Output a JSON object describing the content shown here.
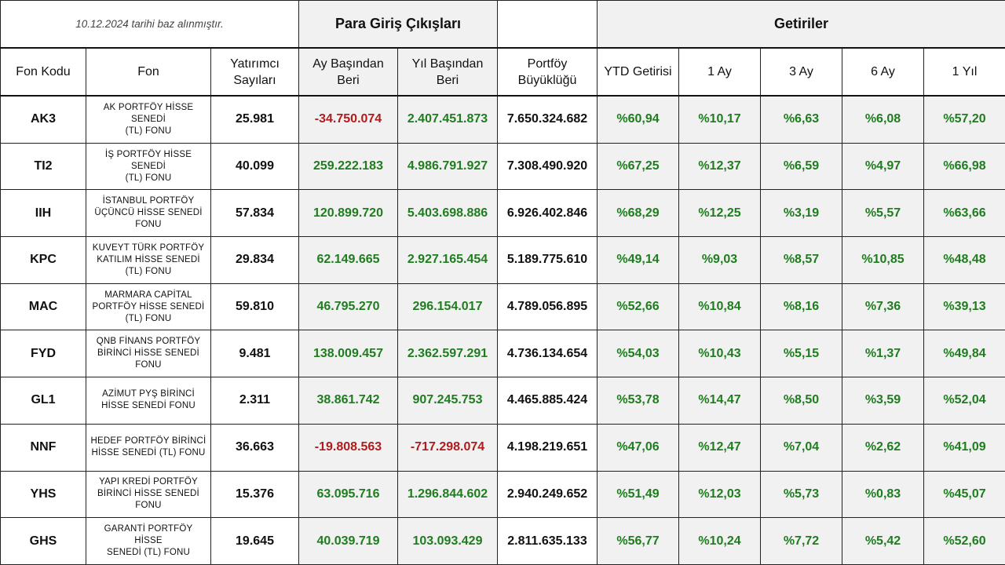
{
  "header": {
    "date_note": "10.12.2024  tarihi baz alınmıştır.",
    "flows_title": "Para Giriş Çıkışları",
    "returns_title": "Getiriler"
  },
  "columns": {
    "code": "Fon Kodu",
    "fund": "Fon",
    "investors_line1": "Yatırımcı",
    "investors_line2": "Sayıları",
    "mtd_line1": "Ay Başından",
    "mtd_line2": "Beri",
    "ytd_flow_line1": "Yıl Başından",
    "ytd_flow_line2": "Beri",
    "size_line1": "Portföy",
    "size_line2": "Büyüklüğü",
    "ytd_return": "YTD Getirisi",
    "r1m": "1 Ay",
    "r3m": "3 Ay",
    "r6m": "6 Ay",
    "r1y": "1 Yıl"
  },
  "colors": {
    "positive": "#1f7d1f",
    "negative": "#b01c1c",
    "shaded": "#f1f1f1"
  },
  "rows": [
    {
      "code": "AK3",
      "fund_l1": "AK PORTFÖY HİSSE SENEDİ",
      "fund_l2": "(TL) FONU",
      "fund_l3": "",
      "investors": "25.981",
      "mtd": "-34.750.074",
      "ytd_flow": "2.407.451.873",
      "size": "7.650.324.682",
      "ytd": "%60,94",
      "r1m": "%10,17",
      "r3m": "%6,63",
      "r6m": "%6,08",
      "r1y": "%57,20"
    },
    {
      "code": "TI2",
      "fund_l1": "İŞ PORTFÖY HİSSE SENEDİ",
      "fund_l2": "(TL) FONU",
      "fund_l3": "",
      "investors": "40.099",
      "mtd": "259.222.183",
      "ytd_flow": "4.986.791.927",
      "size": "7.308.490.920",
      "ytd": "%67,25",
      "r1m": "%12,37",
      "r3m": "%6,59",
      "r6m": "%4,97",
      "r1y": "%66,98"
    },
    {
      "code": "IIH",
      "fund_l1": "İSTANBUL PORTFÖY",
      "fund_l2": "ÜÇÜNCÜ HİSSE SENEDİ",
      "fund_l3": "FONU",
      "investors": "57.834",
      "mtd": "120.899.720",
      "ytd_flow": "5.403.698.886",
      "size": "6.926.402.846",
      "ytd": "%68,29",
      "r1m": "%12,25",
      "r3m": "%3,19",
      "r6m": "%5,57",
      "r1y": "%63,66"
    },
    {
      "code": "KPC",
      "fund_l1": "KUVEYT TÜRK PORTFÖY",
      "fund_l2": "KATILIM HİSSE SENEDİ",
      "fund_l3": "(TL) FONU",
      "investors": "29.834",
      "mtd": "62.149.665",
      "ytd_flow": "2.927.165.454",
      "size": "5.189.775.610",
      "ytd": "%49,14",
      "r1m": "%9,03",
      "r3m": "%8,57",
      "r6m": "%10,85",
      "r1y": "%48,48"
    },
    {
      "code": "MAC",
      "fund_l1": "MARMARA CAPİTAL",
      "fund_l2": "PORTFÖY HİSSE SENEDİ",
      "fund_l3": "(TL) FONU",
      "investors": "59.810",
      "mtd": "46.795.270",
      "ytd_flow": "296.154.017",
      "size": "4.789.056.895",
      "ytd": "%52,66",
      "r1m": "%10,84",
      "r3m": "%8,16",
      "r6m": "%7,36",
      "r1y": "%39,13"
    },
    {
      "code": "FYD",
      "fund_l1": "QNB FİNANS PORTFÖY",
      "fund_l2": "BİRİNCİ HİSSE SENEDİ",
      "fund_l3": "FONU",
      "investors": "9.481",
      "mtd": "138.009.457",
      "ytd_flow": "2.362.597.291",
      "size": "4.736.134.654",
      "ytd": "%54,03",
      "r1m": "%10,43",
      "r3m": "%5,15",
      "r6m": "%1,37",
      "r1y": "%49,84"
    },
    {
      "code": "GL1",
      "fund_l1": "AZİMUT PYŞ BİRİNCİ",
      "fund_l2": "HİSSE SENEDİ FONU",
      "fund_l3": "",
      "investors": "2.311",
      "mtd": "38.861.742",
      "ytd_flow": "907.245.753",
      "size": "4.465.885.424",
      "ytd": "%53,78",
      "r1m": "%14,47",
      "r3m": "%8,50",
      "r6m": "%3,59",
      "r1y": "%52,04"
    },
    {
      "code": "NNF",
      "fund_l1": "HEDEF PORTFÖY BİRİNCİ",
      "fund_l2": "HİSSE SENEDİ (TL) FONU",
      "fund_l3": "",
      "investors": "36.663",
      "mtd": "-19.808.563",
      "ytd_flow": "-717.298.074",
      "size": "4.198.219.651",
      "ytd": "%47,06",
      "r1m": "%12,47",
      "r3m": "%7,04",
      "r6m": "%2,62",
      "r1y": "%41,09"
    },
    {
      "code": "YHS",
      "fund_l1": "YAPI KREDİ PORTFÖY",
      "fund_l2": "BİRİNCİ HİSSE SENEDİ",
      "fund_l3": "FONU",
      "investors": "15.376",
      "mtd": "63.095.716",
      "ytd_flow": "1.296.844.602",
      "size": "2.940.249.652",
      "ytd": "%51,49",
      "r1m": "%12,03",
      "r3m": "%5,73",
      "r6m": "%0,83",
      "r1y": "%45,07"
    },
    {
      "code": "GHS",
      "fund_l1": "GARANTİ PORTFÖY HİSSE",
      "fund_l2": "SENEDİ (TL) FONU",
      "fund_l3": "",
      "investors": "19.645",
      "mtd": "40.039.719",
      "ytd_flow": "103.093.429",
      "size": "2.811.635.133",
      "ytd": "%56,77",
      "r1m": "%10,24",
      "r3m": "%7,72",
      "r6m": "%5,42",
      "r1y": "%52,60"
    }
  ]
}
